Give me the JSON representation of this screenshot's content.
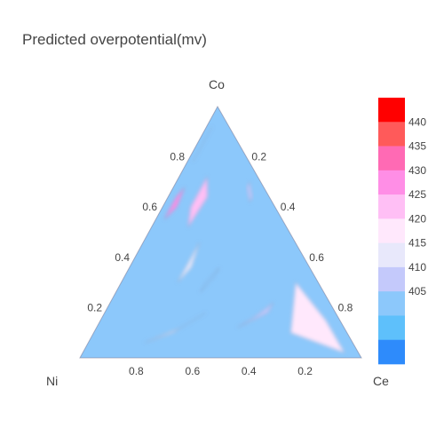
{
  "chart_data": {
    "type": "ternary-contour",
    "title": "Predicted overpotential(mv)",
    "axes": {
      "top": {
        "label": "Co",
        "ticks": [
          "0.8",
          "0.6",
          "0.4",
          "0.2"
        ]
      },
      "right": {
        "label": "Ce",
        "ticks": [
          "0.2",
          "0.4",
          "0.6",
          "0.8"
        ]
      },
      "left": {
        "label": "Ni",
        "ticks": [
          "0.8",
          "0.6",
          "0.4",
          "0.2"
        ]
      }
    },
    "colorbar": {
      "ticks": [
        "440",
        "435",
        "430",
        "425",
        "420",
        "415",
        "410",
        "405"
      ],
      "bands": [
        {
          "max": 445,
          "color": "#ff0000"
        },
        {
          "max": 440,
          "color": "#ff5a5a"
        },
        {
          "max": 435,
          "color": "#ff6ab4"
        },
        {
          "max": 430,
          "color": "#ff8ee6"
        },
        {
          "max": 425,
          "color": "#ffbff5"
        },
        {
          "max": 420,
          "color": "#ffe8fc"
        },
        {
          "max": 415,
          "color": "#e8e8fb"
        },
        {
          "max": 410,
          "color": "#c4c9fb"
        },
        {
          "max": 405,
          "color": "#8cc8fb"
        },
        {
          "max": 400,
          "color": "#5ec0fb"
        },
        {
          "max": 395,
          "color": "#2e8bfb"
        }
      ]
    },
    "regions": [
      {
        "value": 418,
        "points": [
          [
            0.02,
            0.05,
            0.93
          ],
          [
            0.15,
            0.05,
            0.8
          ],
          [
            0.3,
            0.08,
            0.62
          ],
          [
            0.1,
            0.2,
            0.7
          ]
        ]
      },
      {
        "value": 427,
        "points": [
          [
            0.55,
            0.42,
            0.03
          ],
          [
            0.6,
            0.35,
            0.05
          ],
          [
            0.68,
            0.28,
            0.04
          ],
          [
            0.64,
            0.33,
            0.03
          ]
        ]
      },
      {
        "value": 422,
        "points": [
          [
            0.52,
            0.35,
            0.13
          ],
          [
            0.6,
            0.3,
            0.1
          ],
          [
            0.72,
            0.18,
            0.1
          ],
          [
            0.64,
            0.22,
            0.14
          ]
        ]
      },
      {
        "value": 413,
        "points": [
          [
            0.78,
            0.2,
            0.02
          ],
          [
            0.86,
            0.12,
            0.02
          ],
          [
            0.92,
            0.06,
            0.02
          ],
          [
            0.88,
            0.1,
            0.02
          ]
        ]
      },
      {
        "value": 407,
        "points": [
          [
            0.62,
            0.08,
            0.3
          ],
          [
            0.68,
            0.06,
            0.26
          ],
          [
            0.7,
            0.04,
            0.26
          ],
          [
            0.64,
            0.06,
            0.3
          ]
        ]
      },
      {
        "value": 412,
        "points": [
          [
            0.3,
            0.5,
            0.2
          ],
          [
            0.36,
            0.42,
            0.22
          ],
          [
            0.46,
            0.34,
            0.2
          ],
          [
            0.4,
            0.4,
            0.2
          ]
        ]
      },
      {
        "value": 402,
        "points": [
          [
            0.26,
            0.44,
            0.3
          ],
          [
            0.32,
            0.36,
            0.32
          ],
          [
            0.36,
            0.32,
            0.32
          ],
          [
            0.3,
            0.4,
            0.3
          ]
        ]
      },
      {
        "value": 407,
        "points": [
          [
            0.12,
            0.38,
            0.5
          ],
          [
            0.18,
            0.24,
            0.58
          ],
          [
            0.22,
            0.2,
            0.58
          ],
          [
            0.16,
            0.3,
            0.54
          ]
        ]
      },
      {
        "value": 413,
        "points": [
          [
            0.06,
            0.74,
            0.2
          ],
          [
            0.1,
            0.62,
            0.28
          ],
          [
            0.18,
            0.46,
            0.36
          ],
          [
            0.12,
            0.58,
            0.3
          ]
        ]
      }
    ]
  }
}
